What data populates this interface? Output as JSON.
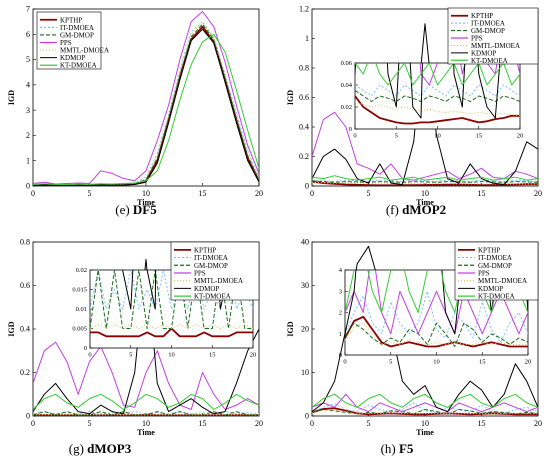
{
  "chart_data": [
    {
      "type": "line",
      "caption_label": "(e)",
      "caption_name": "DF5",
      "ylabel": "IGD",
      "xlabel": "Time",
      "xlim": [
        0,
        20
      ],
      "ylim": [
        0,
        7
      ],
      "xticks": [
        0,
        5,
        10,
        15,
        20
      ],
      "yticks": [
        0,
        1,
        2,
        3,
        4,
        5,
        6,
        7
      ],
      "legend": "top-left",
      "x": [
        0,
        1,
        2,
        3,
        4,
        5,
        6,
        7,
        8,
        9,
        10,
        11,
        12,
        13,
        14,
        15,
        16,
        17,
        18,
        19,
        20
      ],
      "series": [
        {
          "name": "KPTHP",
          "values": [
            0.02,
            0.05,
            0.03,
            0.02,
            0.04,
            0.03,
            0.05,
            0.04,
            0.05,
            0.08,
            0.2,
            1.0,
            2.6,
            4.3,
            5.8,
            6.3,
            5.7,
            4.2,
            2.6,
            1.1,
            0.2
          ]
        },
        {
          "name": "IT-DMOEA",
          "values": [
            0.05,
            0.08,
            0.06,
            0.05,
            0.07,
            0.06,
            0.08,
            0.07,
            0.09,
            0.12,
            0.35,
            1.3,
            2.8,
            4.6,
            6.1,
            6.5,
            5.9,
            4.4,
            2.9,
            1.4,
            0.35
          ]
        },
        {
          "name": "GM-DMOP",
          "values": [
            0.03,
            0.06,
            0.04,
            0.03,
            0.05,
            0.04,
            0.06,
            0.05,
            0.06,
            0.09,
            0.25,
            1.1,
            2.7,
            4.4,
            5.9,
            6.4,
            5.8,
            4.3,
            2.7,
            1.2,
            0.25
          ]
        },
        {
          "name": "PPS",
          "values": [
            0.1,
            0.15,
            0.08,
            0.1,
            0.12,
            0.1,
            0.6,
            0.5,
            0.3,
            0.2,
            0.6,
            1.8,
            3.2,
            5.0,
            6.5,
            6.9,
            6.3,
            4.9,
            3.2,
            1.6,
            0.5
          ]
        },
        {
          "name": "MMTL-DMOEA",
          "values": [
            0.04,
            0.07,
            0.05,
            0.04,
            0.06,
            0.05,
            0.07,
            0.06,
            0.07,
            0.1,
            0.3,
            1.2,
            2.75,
            4.5,
            6.0,
            6.45,
            5.85,
            4.35,
            2.8,
            1.3,
            0.3
          ]
        },
        {
          "name": "KDMOP",
          "values": [
            0.02,
            0.04,
            0.02,
            0.02,
            0.03,
            0.02,
            0.04,
            0.03,
            0.04,
            0.06,
            0.15,
            0.9,
            2.5,
            4.2,
            5.75,
            6.2,
            5.65,
            4.1,
            2.5,
            1.0,
            0.15
          ]
        },
        {
          "name": "KT-DMOEA",
          "values": [
            0.06,
            0.09,
            0.07,
            0.06,
            0.08,
            0.07,
            0.09,
            0.08,
            0.1,
            0.12,
            0.2,
            0.6,
            1.8,
            3.4,
            4.8,
            5.7,
            6.0,
            5.3,
            3.8,
            2.2,
            0.7
          ]
        }
      ]
    },
    {
      "type": "line",
      "caption_label": "(f)",
      "caption_name": "dMOP2",
      "ylabel": "IGD",
      "xlabel": "Time",
      "xlim": [
        0,
        20
      ],
      "ylim": [
        0,
        1.2
      ],
      "xticks": [
        0,
        5,
        10,
        15,
        20
      ],
      "yticks": [
        0,
        0.2,
        0.4,
        0.6,
        0.8,
        1,
        1.2
      ],
      "ytick_labels": [
        "0",
        "0.2",
        "0.4",
        "0.6",
        "0.8",
        "1",
        "1.2"
      ],
      "legend": "top-right",
      "x": [
        0,
        1,
        2,
        3,
        4,
        5,
        6,
        7,
        8,
        9,
        10,
        11,
        12,
        13,
        14,
        15,
        16,
        17,
        18,
        19,
        20
      ],
      "series": [
        {
          "name": "KPTHP",
          "values": [
            0.03,
            0.02,
            0.015,
            0.01,
            0.008,
            0.006,
            0.005,
            0.005,
            0.006,
            0.006,
            0.007,
            0.008,
            0.009,
            0.01,
            0.008,
            0.006,
            0.007,
            0.009,
            0.01,
            0.012,
            0.012
          ]
        },
        {
          "name": "IT-DMOEA",
          "values": [
            0.04,
            0.035,
            0.03,
            0.04,
            0.035,
            0.03,
            0.04,
            0.035,
            0.03,
            0.04,
            0.035,
            0.03,
            0.04,
            0.035,
            0.03,
            0.04,
            0.035,
            0.03,
            0.04,
            0.035,
            0.03
          ]
        },
        {
          "name": "GM-DMOP",
          "values": [
            0.035,
            0.03,
            0.025,
            0.03,
            0.028,
            0.025,
            0.03,
            0.028,
            0.025,
            0.03,
            0.028,
            0.025,
            0.03,
            0.028,
            0.025,
            0.03,
            0.028,
            0.025,
            0.03,
            0.028,
            0.025
          ]
        },
        {
          "name": "PPS",
          "values": [
            0.2,
            0.45,
            0.5,
            0.4,
            0.15,
            0.12,
            0.08,
            0.15,
            0.05,
            0.04,
            0.06,
            0.08,
            0.1,
            0.05,
            0.08,
            0.12,
            0.06,
            0.05,
            0.1,
            0.08,
            0.05
          ]
        },
        {
          "name": "MMTL-DMOEA",
          "values": [
            0.025,
            0.022,
            0.02,
            0.022,
            0.02,
            0.018,
            0.02,
            0.018,
            0.016,
            0.018,
            0.016,
            0.015,
            0.016,
            0.015,
            0.014,
            0.015,
            0.014,
            0.013,
            0.014,
            0.013,
            0.012
          ]
        },
        {
          "name": "KDMOP",
          "values": [
            0.05,
            0.2,
            0.25,
            0.18,
            0.05,
            0.02,
            0.15,
            0.02,
            0.01,
            0.3,
            1.1,
            0.35,
            0.05,
            0.02,
            0.15,
            0.05,
            0.02,
            0.01,
            0.1,
            0.3,
            0.25
          ]
        },
        {
          "name": "KT-DMOEA",
          "values": [
            0.06,
            0.05,
            0.07,
            0.05,
            0.04,
            0.05,
            0.06,
            0.04,
            0.05,
            0.06,
            0.04,
            0.05,
            0.06,
            0.04,
            0.05,
            0.06,
            0.04,
            0.05,
            0.06,
            0.04,
            0.05
          ]
        }
      ],
      "inset": {
        "xlim": [
          0,
          20
        ],
        "ylim": [
          0,
          0.06
        ],
        "xticks": [
          0,
          5,
          10,
          15,
          20
        ],
        "yticks": [
          0,
          0.02,
          0.04,
          0.06
        ],
        "ytick_labels": [
          "0",
          "0.02",
          "0.04",
          "0.06"
        ]
      }
    },
    {
      "type": "line",
      "caption_label": "(g)",
      "caption_name": "dMOP3",
      "ylabel": "IGD",
      "xlabel": "Time",
      "xlim": [
        0,
        20
      ],
      "ylim": [
        0,
        0.8
      ],
      "xticks": [
        0,
        5,
        10,
        15,
        20
      ],
      "yticks": [
        0,
        0.2,
        0.4,
        0.6,
        0.8
      ],
      "ytick_labels": [
        "0",
        "0.2",
        "0.4",
        "0.6",
        "0.8"
      ],
      "legend": "top-right",
      "x": [
        0,
        1,
        2,
        3,
        4,
        5,
        6,
        7,
        8,
        9,
        10,
        11,
        12,
        13,
        14,
        15,
        16,
        17,
        18,
        19,
        20
      ],
      "series": [
        {
          "name": "KPTHP",
          "values": [
            0.004,
            0.004,
            0.003,
            0.003,
            0.003,
            0.003,
            0.003,
            0.004,
            0.003,
            0.003,
            0.005,
            0.003,
            0.003,
            0.003,
            0.004,
            0.003,
            0.003,
            0.003,
            0.004,
            0.004,
            0.004
          ]
        },
        {
          "name": "IT-DMOEA",
          "values": [
            0.01,
            0.02,
            0.01,
            0.015,
            0.01,
            0.02,
            0.01,
            0.015,
            0.01,
            0.02,
            0.01,
            0.015,
            0.01,
            0.02,
            0.01,
            0.015,
            0.01,
            0.02,
            0.01,
            0.015,
            0.01
          ]
        },
        {
          "name": "GM-DMOP",
          "values": [
            0.005,
            0.02,
            0.005,
            0.02,
            0.005,
            0.005,
            0.02,
            0.005,
            0.02,
            0.005,
            0.005,
            0.02,
            0.005,
            0.02,
            0.005,
            0.005,
            0.02,
            0.005,
            0.02,
            0.005,
            0.005
          ]
        },
        {
          "name": "PPS",
          "values": [
            0.15,
            0.3,
            0.34,
            0.25,
            0.1,
            0.25,
            0.32,
            0.2,
            0.05,
            0.04,
            0.2,
            0.3,
            0.15,
            0.05,
            0.03,
            0.2,
            0.1,
            0.03,
            0.05,
            0.08,
            0.05
          ]
        },
        {
          "name": "MMTL-DMOEA",
          "values": [
            0.005,
            0.006,
            0.005,
            0.006,
            0.005,
            0.006,
            0.005,
            0.006,
            0.005,
            0.006,
            0.005,
            0.006,
            0.005,
            0.006,
            0.005,
            0.006,
            0.005,
            0.006,
            0.005,
            0.006,
            0.005
          ]
        },
        {
          "name": "KDMOP",
          "values": [
            0.02,
            0.1,
            0.15,
            0.08,
            0.02,
            0.01,
            0.05,
            0.02,
            0.01,
            0.2,
            0.72,
            0.15,
            0.02,
            0.05,
            0.08,
            0.04,
            0.01,
            0.02,
            0.15,
            0.3,
            0.4
          ]
        },
        {
          "name": "KT-DMOEA",
          "values": [
            0.03,
            0.08,
            0.1,
            0.06,
            0.04,
            0.08,
            0.1,
            0.07,
            0.03,
            0.06,
            0.1,
            0.08,
            0.04,
            0.06,
            0.1,
            0.08,
            0.03,
            0.06,
            0.1,
            0.07,
            0.05
          ]
        }
      ],
      "inset": {
        "xlim": [
          0,
          20
        ],
        "ylim": [
          0,
          0.02
        ],
        "xticks": [
          0,
          5,
          10,
          15,
          20
        ],
        "yticks": [
          0,
          0.005,
          0.01,
          0.015,
          0.02
        ],
        "ytick_labels": [
          "0",
          "0.005",
          "0.01",
          "0.015",
          "0.02"
        ]
      }
    },
    {
      "type": "line",
      "caption_label": "(h)",
      "caption_name": "F5",
      "ylabel": "IGD",
      "xlabel": "Time",
      "xlim": [
        0,
        20
      ],
      "ylim": [
        0,
        40
      ],
      "xticks": [
        0,
        5,
        10,
        15,
        20
      ],
      "yticks": [
        0,
        10,
        20,
        30,
        40
      ],
      "legend": "top-right",
      "x": [
        0,
        1,
        2,
        3,
        4,
        5,
        6,
        7,
        8,
        9,
        10,
        11,
        12,
        13,
        14,
        15,
        16,
        17,
        18,
        19,
        20
      ],
      "series": [
        {
          "name": "KPTHP",
          "values": [
            0.8,
            1.6,
            1.8,
            1.2,
            0.6,
            0.4,
            0.5,
            0.6,
            0.5,
            0.4,
            0.4,
            0.5,
            0.6,
            0.5,
            0.4,
            0.5,
            0.6,
            0.5,
            0.4,
            0.4,
            0.4
          ]
        },
        {
          "name": "IT-DMOEA",
          "values": [
            1.0,
            2.0,
            2.8,
            1.5,
            1.0,
            2.5,
            1.5,
            1.0,
            1.5,
            3.0,
            1.2,
            0.8,
            2.0,
            1.5,
            0.8,
            2.5,
            1.2,
            0.6,
            1.5,
            2.0,
            1.0
          ]
        },
        {
          "name": "GM-DMOP",
          "values": [
            0.9,
            1.5,
            1.2,
            0.8,
            0.5,
            0.8,
            0.6,
            1.2,
            1.0,
            0.5,
            1.5,
            1.0,
            0.4,
            1.5,
            1.2,
            0.6,
            1.0,
            0.8,
            0.5,
            0.8,
            0.6
          ]
        },
        {
          "name": "PPS",
          "values": [
            2,
            3,
            2,
            5,
            2,
            1,
            3,
            2,
            1,
            2,
            3,
            2,
            1,
            3,
            2,
            1,
            2,
            3,
            2,
            1,
            2
          ]
        },
        {
          "name": "MMTL-DMOEA",
          "values": [
            0.7,
            1.3,
            1.5,
            1.0,
            0.5,
            0.6,
            0.5,
            0.7,
            0.6,
            0.5,
            0.6,
            0.5,
            0.6,
            0.5,
            0.5,
            0.6,
            0.5,
            0.6,
            0.5,
            0.5,
            0.5
          ]
        },
        {
          "name": "KDMOP",
          "values": [
            1,
            3,
            8,
            20,
            35,
            39,
            30,
            20,
            8,
            5,
            7,
            2,
            1,
            5,
            8,
            6,
            2,
            5,
            12,
            8,
            2
          ]
        },
        {
          "name": "KT-DMOEA",
          "values": [
            2,
            4,
            5,
            3,
            2,
            4,
            5,
            3,
            2,
            4,
            5,
            3,
            2,
            4,
            5,
            3,
            2,
            4,
            5,
            3,
            2
          ]
        }
      ],
      "inset": {
        "xlim": [
          0,
          20
        ],
        "ylim": [
          0,
          4
        ],
        "xticks": [
          0,
          5,
          10,
          15,
          20
        ],
        "yticks": [
          0,
          1,
          2,
          3,
          4
        ]
      }
    }
  ],
  "colors": {
    "KPTHP": "#8b0000",
    "IT-DMOEA": "#7fbfff",
    "GM-DMOP": "#1a6b1a",
    "PPS": "#c040e0",
    "MMTL-DMOEA": "#d8c05a",
    "KDMOP": "#000000",
    "KT-DMOEA": "#33cc33"
  }
}
